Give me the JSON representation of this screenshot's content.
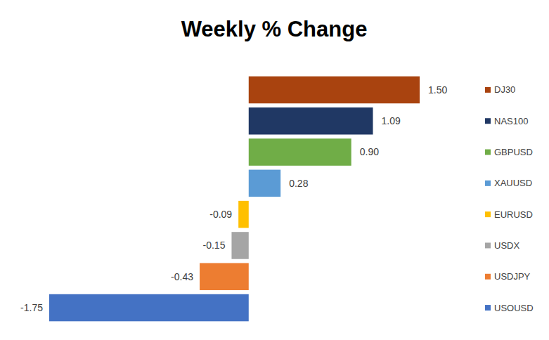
{
  "chart_data": {
    "type": "bar",
    "title": "Weekly % Change",
    "orientation": "horizontal",
    "categories": [
      "DJ30",
      "NAS100",
      "GBPUSD",
      "XAUUSD",
      "EURUSD",
      "USDX",
      "USDJPY",
      "USOUSD"
    ],
    "values": [
      1.5,
      1.09,
      0.9,
      0.28,
      -0.09,
      -0.15,
      -0.43,
      -1.75
    ],
    "value_labels": [
      "1.50",
      "1.09",
      "0.90",
      "0.28",
      "-0.09",
      "-0.15",
      "-0.43",
      "-1.75"
    ],
    "colors": [
      "#a9430f",
      "#203864",
      "#70ad47",
      "#5b9bd5",
      "#ffc000",
      "#a5a5a5",
      "#ed7d31",
      "#4472c4"
    ],
    "xlim": [
      -1.75,
      1.5
    ],
    "tick_labels": false,
    "grid": false,
    "data_labels": true
  }
}
